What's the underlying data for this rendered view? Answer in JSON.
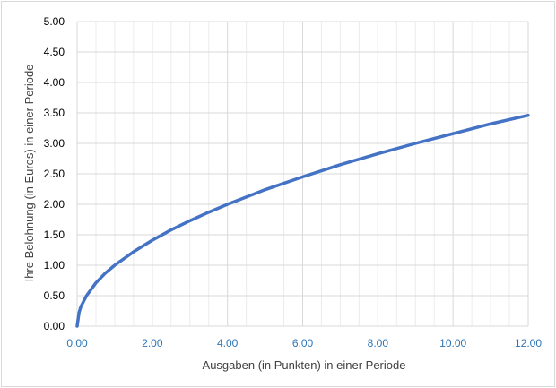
{
  "chart_data": {
    "type": "line",
    "title": "",
    "xlabel": "Ausgaben (in Punkten) in einer Periode",
    "ylabel": "Ihre Belohnung (in Euros) in einer Periode",
    "xlim": [
      0,
      12
    ],
    "ylim": [
      0,
      5
    ],
    "x_tick_labels": [
      "0.00",
      "2.00",
      "4.00",
      "6.00",
      "8.00",
      "10.00",
      "12.00"
    ],
    "y_tick_labels": [
      "0.00",
      "0.50",
      "1.00",
      "1.50",
      "2.00",
      "2.50",
      "3.00",
      "3.50",
      "4.00",
      "4.50",
      "5.00"
    ],
    "grid": true,
    "legend": "none",
    "colors": {
      "series": "#4472c4",
      "x_tick_text": "#2e75b6",
      "y_tick_text": "#000000",
      "grid": "#d9d9d9"
    },
    "series": [
      {
        "values_x": [
          0,
          0.05,
          0.1,
          0.25,
          0.5,
          0.75,
          1,
          1.5,
          2,
          2.5,
          3,
          3.5,
          4,
          4.5,
          5,
          6,
          7,
          8,
          9,
          10,
          11,
          12
        ],
        "values_y": [
          0,
          0.22,
          0.32,
          0.5,
          0.71,
          0.87,
          1.0,
          1.22,
          1.41,
          1.58,
          1.73,
          1.87,
          2.0,
          2.12,
          2.24,
          2.45,
          2.65,
          2.83,
          3.0,
          3.16,
          3.32,
          3.46
        ]
      }
    ]
  }
}
